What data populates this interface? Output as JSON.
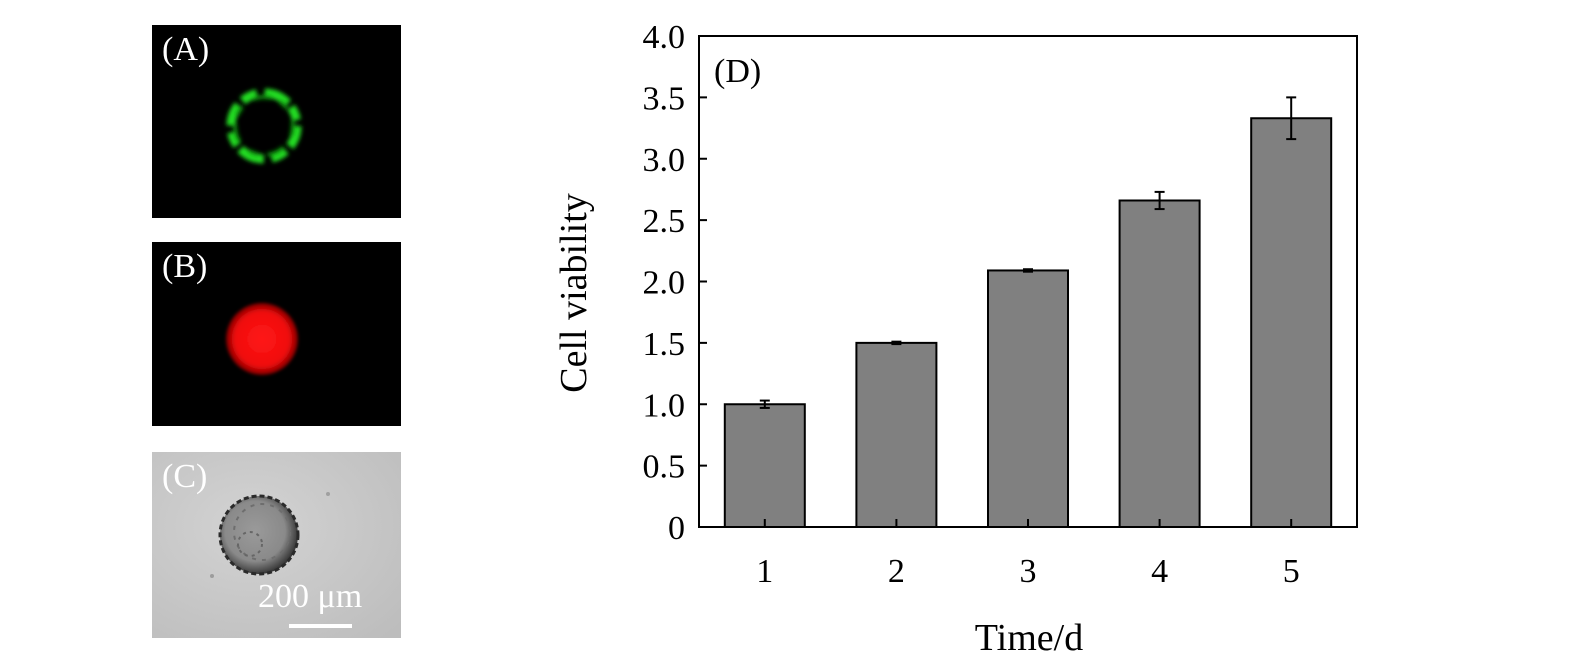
{
  "panels": {
    "a": {
      "label": "(A)"
    },
    "b": {
      "label": "(B)"
    },
    "c": {
      "label": "(C)",
      "scale_bar_text": "200 μm"
    }
  },
  "colors": {
    "panel_a_stain": "#22dd22",
    "panel_b_stain": "#ff1010",
    "bar_fill": "#808080"
  },
  "chart_data": {
    "type": "bar",
    "panel_label": "(D)",
    "categories": [
      "1",
      "2",
      "3",
      "4",
      "5"
    ],
    "values": [
      1.0,
      1.5,
      2.09,
      2.66,
      3.33
    ],
    "errors": [
      0.03,
      0.01,
      0.01,
      0.07,
      0.17
    ],
    "xlabel": "Time/d",
    "ylabel": "Cell viability",
    "ylim": [
      0,
      4.0
    ],
    "yticks": [
      "0",
      "0.5",
      "1.0",
      "1.5",
      "2.0",
      "2.5",
      "3.0",
      "3.5",
      "4.0"
    ],
    "grid": false
  }
}
